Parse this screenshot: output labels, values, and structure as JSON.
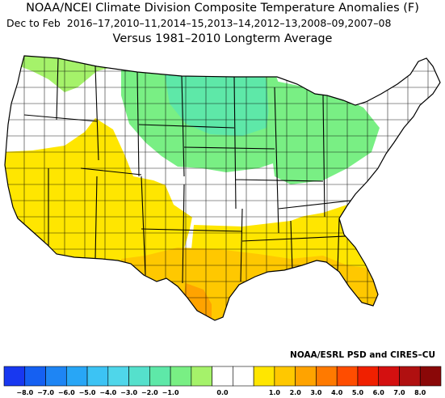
{
  "title": "NOAA/NCEI Climate Division Composite Temperature Anomalies (F)",
  "subtitle_left": "Dec to Feb",
  "subtitle_years": "2016–17,2010–11,2014–15,2013–14,2012–13,2008–09,2007–08",
  "subtitle_versus": "Versus 1981–2010 Longterm Average",
  "credit": "NOAA/ESRL PSD and CIRES–CU",
  "colorbar": {
    "colors": [
      "#1838f0",
      "#1560f2",
      "#1e85f4",
      "#28a6f6",
      "#3cc3f4",
      "#4fd6ea",
      "#55e0cc",
      "#5ee8a8",
      "#79ef84",
      "#a5f26a",
      "#ffffff",
      "#ffffff",
      "#ffe600",
      "#ffc800",
      "#ffa300",
      "#ff7a00",
      "#ff4d00",
      "#f02000",
      "#d41010",
      "#b01010",
      "#8a0808"
    ],
    "tick_labels": [
      "−8.0",
      "−7.0",
      "−6.0",
      "−5.0",
      "−4.0",
      "−3.0",
      "−2.0",
      "−1.0",
      "0.0",
      "1.0",
      "2.0",
      "3.0",
      "4.0",
      "5.0",
      "6.0",
      "7.0",
      "8.0"
    ],
    "tick_values": [
      -8,
      -7,
      -6,
      -5,
      -4,
      -3,
      -2,
      -1,
      0,
      1,
      2,
      3,
      4,
      5,
      6,
      7,
      8
    ]
  },
  "map_regions": [
    {
      "name": "northwest-green",
      "color": "#a5f26a",
      "anomaly_bin": "-1.0 to -0.5"
    },
    {
      "name": "northern-plains-green",
      "color": "#79ef84",
      "anomaly_bin": "-1.5 to -1.0"
    },
    {
      "name": "upper-midwest-green",
      "color": "#5ee8a8",
      "anomaly_bin": "-2.0 to -1.5"
    },
    {
      "name": "great-lakes-green",
      "color": "#79ef84",
      "anomaly_bin": "-1.5 to -1.0"
    },
    {
      "name": "neutral-white",
      "color": "#ffffff",
      "anomaly_bin": "-0.5 to 0.5"
    },
    {
      "name": "southwest-yellow",
      "color": "#ffe600",
      "anomaly_bin": "0.5 to 1.0"
    },
    {
      "name": "southeast-yellow",
      "color": "#ffe600",
      "anomaly_bin": "0.5 to 1.0"
    },
    {
      "name": "gulf-orange",
      "color": "#ffc800",
      "anomaly_bin": "1.0 to 1.5"
    },
    {
      "name": "south-texas-orange",
      "color": "#ffa300",
      "anomaly_bin": "1.5 to 2.0"
    }
  ]
}
